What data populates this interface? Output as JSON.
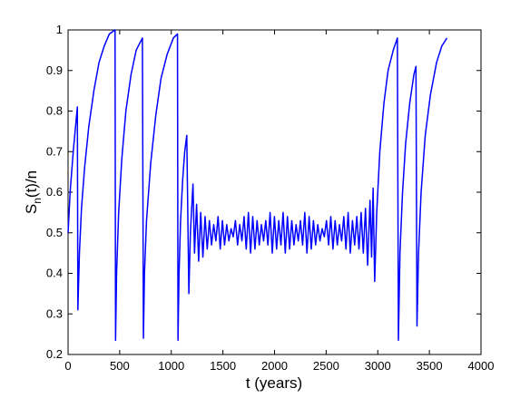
{
  "chart_data": {
    "type": "line",
    "xlabel": "t (years)",
    "ylabel": [
      "S",
      "n",
      "(t)/n"
    ],
    "color": "#0000ff",
    "xlim": [
      0,
      4000
    ],
    "xticks": [
      0,
      500,
      1000,
      1500,
      2000,
      2500,
      3000,
      3500,
      4000
    ],
    "ylim": [
      0.2,
      1
    ],
    "yticks": [
      0.2,
      0.3,
      0.4,
      0.5,
      0.6,
      0.7,
      0.8,
      0.9,
      1
    ],
    "grid": false,
    "x": [
      0,
      20,
      50,
      90,
      95,
      110,
      130,
      160,
      200,
      250,
      300,
      350,
      400,
      455,
      460,
      470,
      490,
      520,
      560,
      610,
      660,
      720,
      730,
      740,
      760,
      800,
      850,
      900,
      960,
      1020,
      1060,
      1065,
      1075,
      1090,
      1110,
      1130,
      1150,
      1170,
      1185,
      1210,
      1225,
      1245,
      1265,
      1285,
      1306,
      1327,
      1348,
      1369,
      1390,
      1411,
      1432,
      1453,
      1474,
      1495,
      1516,
      1537,
      1558,
      1579,
      1600,
      1621,
      1642,
      1663,
      1684,
      1705,
      1726,
      1747,
      1768,
      1789,
      1810,
      1831,
      1852,
      1873,
      1894,
      1915,
      1936,
      1957,
      1978,
      1999,
      2020,
      2041,
      2062,
      2083,
      2104,
      2125,
      2146,
      2167,
      2188,
      2209,
      2230,
      2251,
      2272,
      2293,
      2314,
      2335,
      2356,
      2377,
      2398,
      2419,
      2440,
      2461,
      2482,
      2503,
      2524,
      2545,
      2566,
      2587,
      2608,
      2629,
      2650,
      2671,
      2692,
      2713,
      2734,
      2755,
      2776,
      2797,
      2818,
      2839,
      2860,
      2881,
      2902,
      2925,
      2940,
      2955,
      2970,
      2990,
      3020,
      3060,
      3100,
      3150,
      3190,
      3200,
      3215,
      3240,
      3270,
      3310,
      3350,
      3370,
      3380,
      3395,
      3420,
      3460,
      3510,
      3570,
      3620,
      3670
    ],
    "values": [
      0.5,
      0.6,
      0.7,
      0.81,
      0.31,
      0.45,
      0.56,
      0.66,
      0.76,
      0.85,
      0.92,
      0.96,
      0.99,
      1.0,
      0.235,
      0.4,
      0.55,
      0.68,
      0.8,
      0.89,
      0.95,
      0.98,
      0.24,
      0.4,
      0.53,
      0.67,
      0.79,
      0.88,
      0.94,
      0.98,
      0.99,
      0.235,
      0.4,
      0.53,
      0.63,
      0.7,
      0.74,
      0.35,
      0.5,
      0.62,
      0.45,
      0.57,
      0.43,
      0.55,
      0.44,
      0.54,
      0.46,
      0.53,
      0.47,
      0.52,
      0.48,
      0.54,
      0.46,
      0.53,
      0.47,
      0.52,
      0.48,
      0.51,
      0.49,
      0.53,
      0.47,
      0.52,
      0.48,
      0.54,
      0.46,
      0.55,
      0.45,
      0.54,
      0.46,
      0.53,
      0.47,
      0.52,
      0.48,
      0.53,
      0.47,
      0.55,
      0.45,
      0.54,
      0.46,
      0.53,
      0.47,
      0.55,
      0.45,
      0.54,
      0.46,
      0.53,
      0.47,
      0.52,
      0.48,
      0.53,
      0.47,
      0.55,
      0.45,
      0.54,
      0.46,
      0.53,
      0.47,
      0.52,
      0.48,
      0.51,
      0.49,
      0.53,
      0.47,
      0.54,
      0.46,
      0.53,
      0.47,
      0.52,
      0.48,
      0.54,
      0.46,
      0.55,
      0.45,
      0.53,
      0.47,
      0.54,
      0.46,
      0.55,
      0.45,
      0.56,
      0.42,
      0.58,
      0.44,
      0.61,
      0.38,
      0.55,
      0.7,
      0.82,
      0.9,
      0.95,
      0.98,
      0.235,
      0.45,
      0.6,
      0.72,
      0.82,
      0.89,
      0.91,
      0.27,
      0.45,
      0.6,
      0.74,
      0.84,
      0.92,
      0.96,
      0.98
    ]
  }
}
